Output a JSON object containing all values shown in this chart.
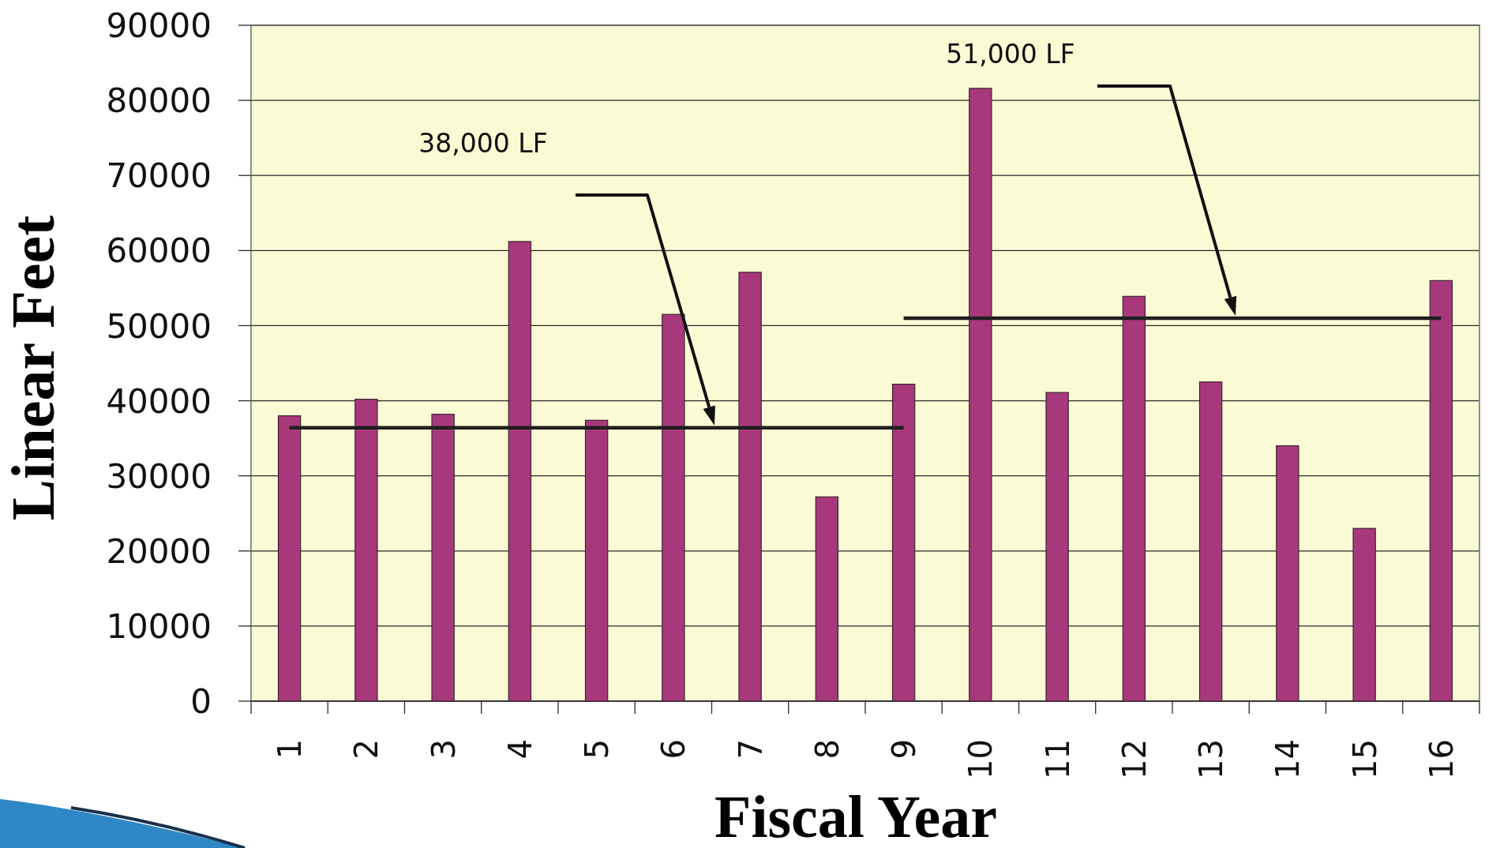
{
  "chart_data": {
    "type": "bar",
    "xlabel": "Fiscal Year",
    "ylabel": "Linear Feet",
    "categories": [
      "1",
      "2",
      "3",
      "4",
      "5",
      "6",
      "7",
      "8",
      "9",
      "10",
      "11",
      "12",
      "13",
      "14",
      "15",
      "16"
    ],
    "series": [
      {
        "color": "#a8387c",
        "values": [
          38000,
          40200,
          38200,
          61200,
          37400,
          51500,
          57100,
          27200,
          42200,
          81600,
          41100,
          53900,
          42500,
          34000,
          23000,
          56000
        ]
      },
      {
        "type": "line",
        "color": "#1e1e1e",
        "x": [
          "1",
          "9"
        ],
        "values": [
          36400,
          36400
        ]
      },
      {
        "type": "line",
        "color": "#1e1e1e",
        "x": [
          "9",
          "16"
        ],
        "values": [
          51000,
          51000
        ]
      }
    ],
    "ylim": [
      0,
      90000
    ],
    "yticks": [
      0,
      10000,
      20000,
      30000,
      40000,
      50000,
      60000,
      70000,
      80000,
      90000
    ],
    "grid": "y",
    "marker": "none",
    "annotations": [
      "38,000 LF",
      "51,000 LF"
    ]
  }
}
